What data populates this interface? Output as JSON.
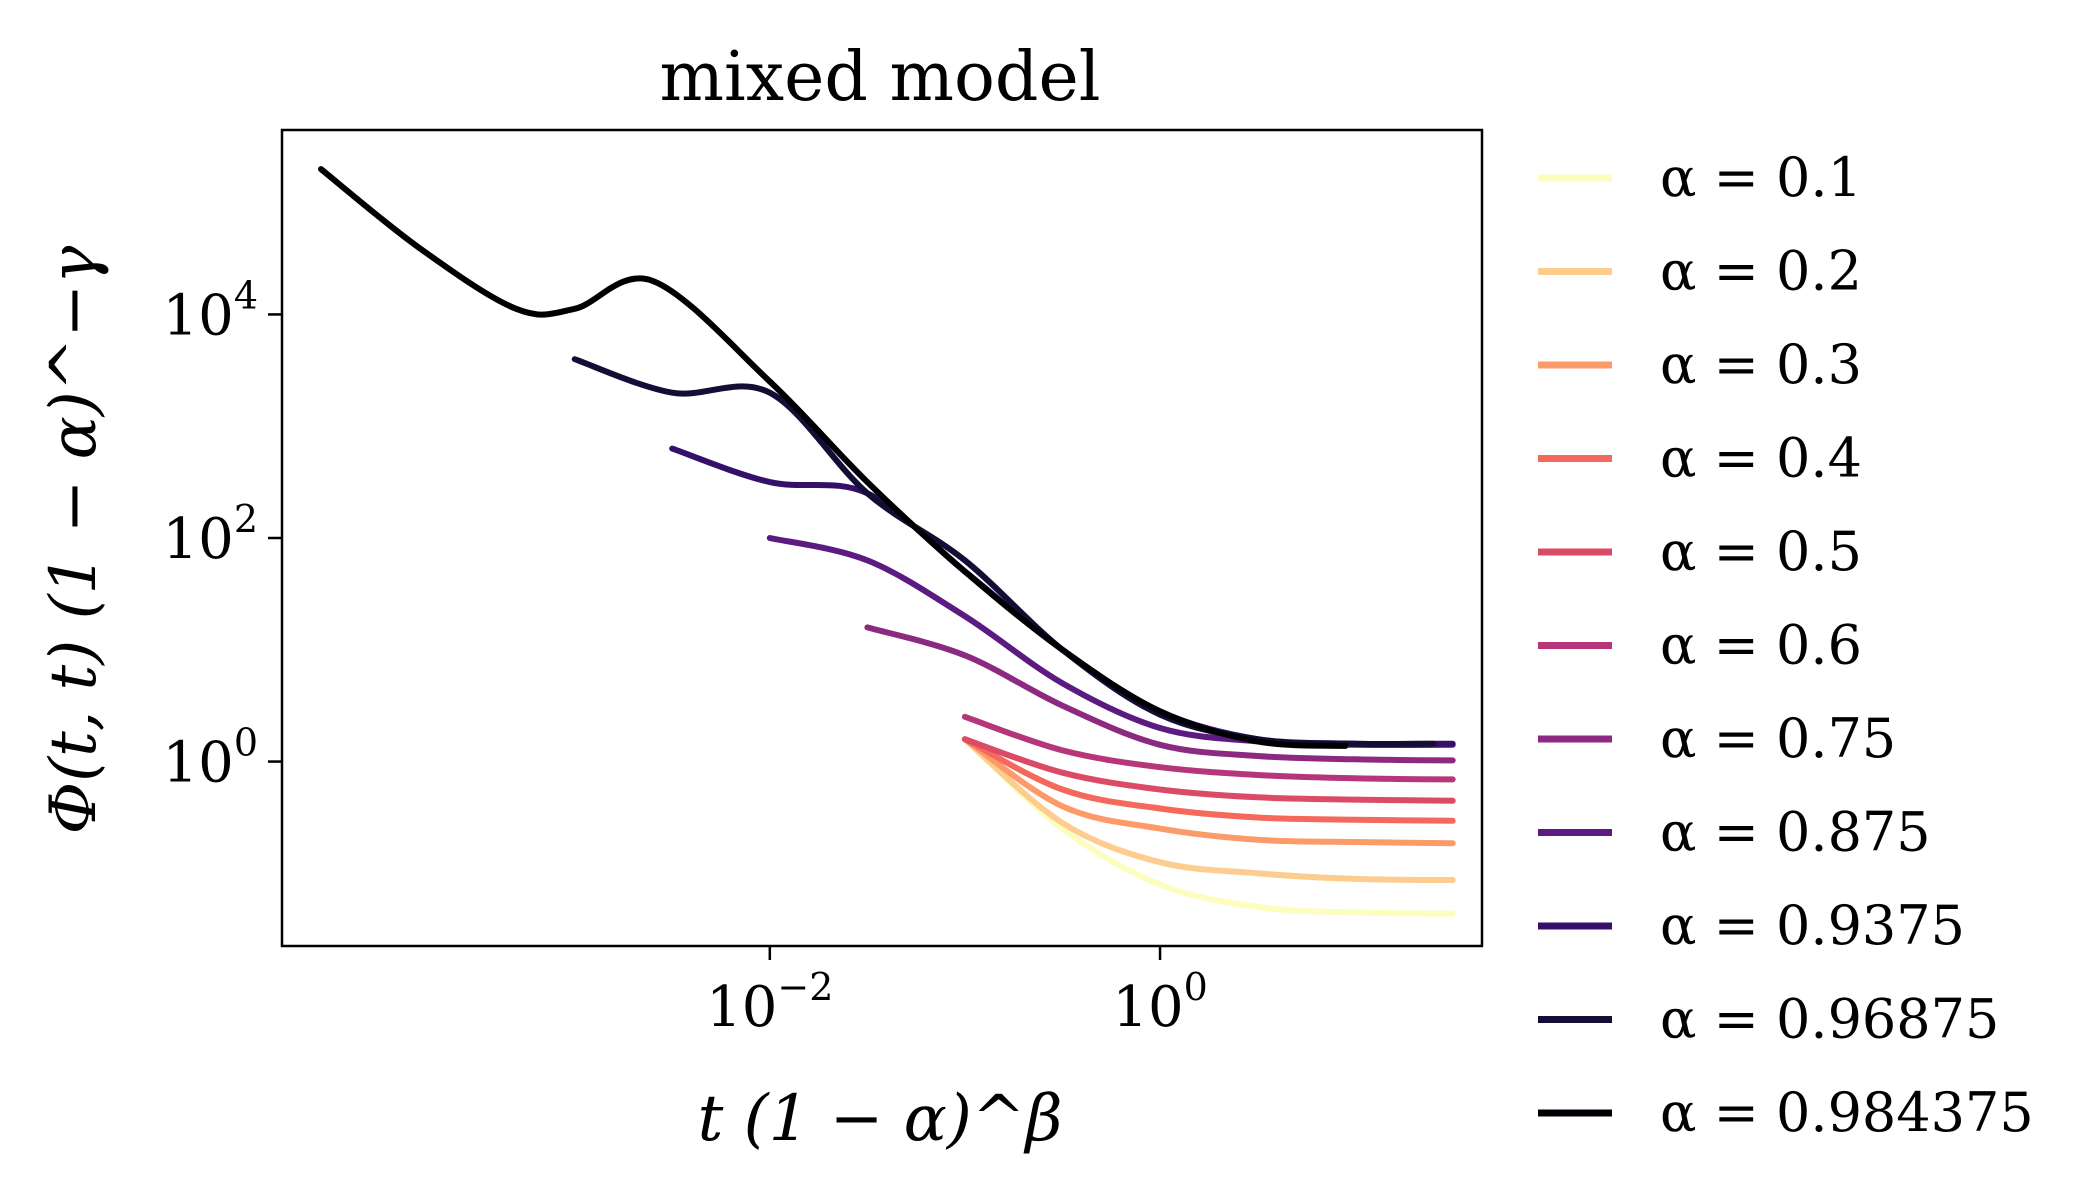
{
  "chart_data": {
    "type": "line",
    "title": "mixed model",
    "xlabel": "t (1 − α)^β",
    "ylabel": "Φ(t, t) (1 − α)^−γ",
    "xscale": "log",
    "yscale": "log",
    "xlim_log10": [
      -4.5,
      1.65
    ],
    "ylim_log10": [
      -1.65,
      5.65
    ],
    "xticks": [
      {
        "log10": -2,
        "base": "10",
        "exp": "−2"
      },
      {
        "log10": 0,
        "base": "10",
        "exp": "0"
      }
    ],
    "yticks": [
      {
        "log10": 0,
        "base": "10",
        "exp": "0"
      },
      {
        "log10": 2,
        "base": "10",
        "exp": "2"
      },
      {
        "log10": 4,
        "base": "10",
        "exp": "4"
      }
    ],
    "legend_position": "outside-right",
    "colors": {
      "a0.1": "#fcfdbf",
      "a0.2": "#fdcd90",
      "a0.3": "#fd9a6a",
      "a0.4": "#f5685c",
      "a0.5": "#dc4b65",
      "a0.6": "#b63779",
      "a0.75": "#8c2981",
      "a0.875": "#5c1b80",
      "a0.9375": "#34106a",
      "a0.96875": "#140e36",
      "a0.984375": "#000004"
    },
    "series": [
      {
        "name": "α = 0.1",
        "color_key": "a0.1",
        "log_x": [
          -1,
          -0.5,
          0,
          0.5,
          1,
          1.5
        ],
        "log_y": [
          0.2,
          -0.6,
          -1.1,
          -1.3,
          -1.35,
          -1.36
        ]
      },
      {
        "name": "α = 0.2",
        "color_key": "a0.2",
        "log_x": [
          -1,
          -0.5,
          0,
          0.5,
          1,
          1.5
        ],
        "log_y": [
          0.2,
          -0.55,
          -0.9,
          -1.0,
          -1.05,
          -1.06
        ]
      },
      {
        "name": "α = 0.3",
        "color_key": "a0.3",
        "log_x": [
          -1,
          -0.5,
          0,
          0.5,
          1,
          1.5
        ],
        "log_y": [
          0.2,
          -0.4,
          -0.6,
          -0.7,
          -0.72,
          -0.73
        ]
      },
      {
        "name": "α = 0.4",
        "color_key": "a0.4",
        "log_x": [
          -1,
          -0.5,
          0,
          0.5,
          1,
          1.5
        ],
        "log_y": [
          0.2,
          -0.25,
          -0.42,
          -0.5,
          -0.52,
          -0.53
        ]
      },
      {
        "name": "α = 0.5",
        "color_key": "a0.5",
        "log_x": [
          -1,
          -0.5,
          0,
          0.5,
          1,
          1.5
        ],
        "log_y": [
          0.2,
          -0.1,
          -0.25,
          -0.32,
          -0.34,
          -0.35
        ]
      },
      {
        "name": "α = 0.6",
        "color_key": "a0.6",
        "log_x": [
          -1,
          -0.5,
          0,
          0.5,
          1,
          1.5
        ],
        "log_y": [
          0.4,
          0.1,
          -0.05,
          -0.12,
          -0.15,
          -0.16
        ]
      },
      {
        "name": "α = 0.75",
        "color_key": "a0.75",
        "log_x": [
          -1.5,
          -1,
          -0.5,
          0,
          0.5,
          1,
          1.5
        ],
        "log_y": [
          1.2,
          0.95,
          0.5,
          0.15,
          0.05,
          0.02,
          0.01
        ]
      },
      {
        "name": "α = 0.875",
        "color_key": "a0.875",
        "log_x": [
          -2,
          -1.5,
          -1,
          -0.5,
          0,
          0.5,
          1,
          1.5
        ],
        "log_y": [
          2.0,
          1.8,
          1.3,
          0.7,
          0.3,
          0.18,
          0.15,
          0.15
        ]
      },
      {
        "name": "α = 0.9375",
        "color_key": "a0.9375",
        "log_x": [
          -2.5,
          -2,
          -1.5,
          -1,
          -0.5,
          0,
          0.5,
          1,
          1.5
        ],
        "log_y": [
          2.8,
          2.5,
          2.4,
          1.7,
          1.0,
          0.45,
          0.2,
          0.16,
          0.16
        ]
      },
      {
        "name": "α = 0.96875",
        "color_key": "a0.96875",
        "log_x": [
          -3,
          -2.5,
          -2,
          -1.5,
          -1,
          -0.5,
          0,
          0.5,
          1,
          1.4
        ],
        "log_y": [
          3.6,
          3.3,
          3.3,
          2.4,
          1.8,
          1.0,
          0.42,
          0.2,
          0.16,
          0.16
        ]
      },
      {
        "name": "α = 0.984375",
        "color_key": "a0.984375",
        "log_x": [
          -4.3,
          -3.8,
          -3.3,
          -3,
          -2.6,
          -2,
          -1.5,
          -1,
          -0.5,
          0,
          0.5,
          0.95
        ],
        "log_y": [
          5.3,
          4.6,
          4.05,
          4.05,
          4.3,
          3.4,
          2.5,
          1.7,
          1.0,
          0.45,
          0.18,
          0.14
        ]
      }
    ]
  }
}
